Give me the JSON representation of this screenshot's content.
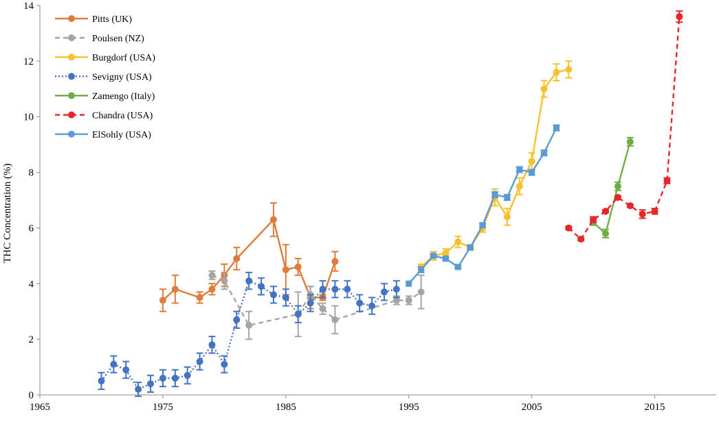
{
  "chart_data": {
    "type": "line",
    "title": "",
    "xlabel": "",
    "ylabel": "THC Concentration (%)",
    "xlim": [
      1965,
      2020
    ],
    "ylim": [
      0,
      14
    ],
    "x_ticks": [
      1965,
      1975,
      1985,
      1995,
      2005,
      2015
    ],
    "y_ticks": [
      0,
      2,
      4,
      6,
      8,
      10,
      12,
      14
    ],
    "grid": false,
    "legend_position": "top-left",
    "series": [
      {
        "name": "Pitts (UK)",
        "color": "#E07B39",
        "dash": "solid",
        "marker": "circle",
        "points": [
          [
            1975,
            3.4,
            0.4
          ],
          [
            1976,
            3.8,
            0.5
          ],
          [
            1978,
            3.5,
            0.2
          ],
          [
            1979,
            3.8,
            0.2
          ],
          [
            1980,
            4.3,
            0.4
          ],
          [
            1981,
            4.9,
            0.4
          ],
          [
            1984,
            6.3,
            0.6
          ],
          [
            1985,
            4.5,
            0.9
          ],
          [
            1986,
            4.6,
            0.3
          ],
          [
            1987,
            3.5,
            0.4
          ],
          [
            1988,
            3.5,
            0.1
          ],
          [
            1989,
            4.8,
            0.35
          ]
        ]
      },
      {
        "name": "Poulsen (NZ)",
        "color": "#A5A5A5",
        "dash": "dashed",
        "marker": "circle",
        "points": [
          [
            1979,
            4.3,
            0.15
          ],
          [
            1980,
            4.1,
            0.3
          ],
          [
            1982,
            2.5,
            0.5
          ],
          [
            1986,
            2.9,
            0.8
          ],
          [
            1987,
            3.6,
            0.3
          ],
          [
            1988,
            3.1,
            0.2
          ],
          [
            1989,
            2.7,
            0.5
          ],
          [
            1994,
            3.4,
            0.15
          ],
          [
            1995,
            3.4,
            0.15
          ],
          [
            1996,
            3.7,
            0.6
          ]
        ]
      },
      {
        "name": "Burgdorf (USA)",
        "color": "#FBC02D",
        "dash": "solid",
        "marker": "circle",
        "points": [
          [
            1996,
            4.6,
            0.1
          ],
          [
            1997,
            5.0,
            0.15
          ],
          [
            1998,
            5.1,
            0.15
          ],
          [
            1999,
            5.5,
            0.2
          ],
          [
            2000,
            5.3,
            0.1
          ],
          [
            2001,
            6.0,
            0.15
          ],
          [
            2002,
            7.1,
            0.3
          ],
          [
            2003,
            6.4,
            0.3
          ],
          [
            2004,
            7.5,
            0.3
          ],
          [
            2005,
            8.4,
            0.3
          ],
          [
            2006,
            11.0,
            0.3
          ],
          [
            2007,
            11.6,
            0.3
          ],
          [
            2008,
            11.7,
            0.3
          ]
        ]
      },
      {
        "name": "Sevigny (USA)",
        "color": "#4472C4",
        "dash": "dotted",
        "marker": "circle",
        "points": [
          [
            1970,
            0.5,
            0.3
          ],
          [
            1971,
            1.1,
            0.3
          ],
          [
            1972,
            0.9,
            0.3
          ],
          [
            1973,
            0.2,
            0.25
          ],
          [
            1974,
            0.4,
            0.3
          ],
          [
            1975,
            0.6,
            0.3
          ],
          [
            1976,
            0.6,
            0.3
          ],
          [
            1977,
            0.7,
            0.3
          ],
          [
            1978,
            1.2,
            0.3
          ],
          [
            1979,
            1.8,
            0.3
          ],
          [
            1980,
            1.1,
            0.3
          ],
          [
            1981,
            2.7,
            0.3
          ],
          [
            1982,
            4.1,
            0.3
          ],
          [
            1983,
            3.9,
            0.3
          ],
          [
            1984,
            3.6,
            0.3
          ],
          [
            1985,
            3.5,
            0.3
          ],
          [
            1986,
            2.9,
            0.3
          ],
          [
            1987,
            3.3,
            0.3
          ],
          [
            1988,
            3.8,
            0.3
          ],
          [
            1989,
            3.8,
            0.3
          ],
          [
            1990,
            3.8,
            0.3
          ],
          [
            1991,
            3.3,
            0.3
          ],
          [
            1992,
            3.2,
            0.3
          ],
          [
            1993,
            3.7,
            0.3
          ],
          [
            1994,
            3.8,
            0.3
          ]
        ]
      },
      {
        "name": "Zamengo (Italy)",
        "color": "#70AD47",
        "dash": "solid",
        "marker": "circle",
        "points": [
          [
            2010,
            6.2,
            0.1
          ],
          [
            2011,
            5.8,
            0.15
          ],
          [
            2012,
            7.5,
            0.15
          ],
          [
            2013,
            9.1,
            0.15
          ]
        ]
      },
      {
        "name": "Chandra (USA)",
        "color": "#E8262A",
        "dash": "dashed",
        "marker": "circle",
        "points": [
          [
            2008,
            6.0,
            0.05
          ],
          [
            2009,
            5.6,
            0.05
          ],
          [
            2010,
            6.3,
            0.1
          ],
          [
            2011,
            6.6,
            0.05
          ],
          [
            2012,
            7.1,
            0.05
          ],
          [
            2013,
            6.8,
            0.05
          ],
          [
            2014,
            6.5,
            0.15
          ],
          [
            2015,
            6.6,
            0.1
          ],
          [
            2016,
            7.7,
            0.1
          ],
          [
            2017,
            13.6,
            0.2
          ]
        ]
      },
      {
        "name": "ElSohly (USA)",
        "color": "#5B9BD5",
        "dash": "solid",
        "marker": "square",
        "points": [
          [
            1995,
            4.0,
            0.0
          ],
          [
            1996,
            4.5,
            0.1
          ],
          [
            1997,
            5.0,
            0.05
          ],
          [
            1998,
            4.9,
            0.05
          ],
          [
            1999,
            4.6,
            0.05
          ],
          [
            2000,
            5.3,
            0.05
          ],
          [
            2001,
            6.1,
            0.05
          ],
          [
            2002,
            7.2,
            0.1
          ],
          [
            2003,
            7.1,
            0.1
          ],
          [
            2004,
            8.1,
            0.1
          ],
          [
            2005,
            8.0,
            0.1
          ],
          [
            2006,
            8.7,
            0.1
          ],
          [
            2007,
            9.6,
            0.1
          ]
        ]
      }
    ]
  }
}
